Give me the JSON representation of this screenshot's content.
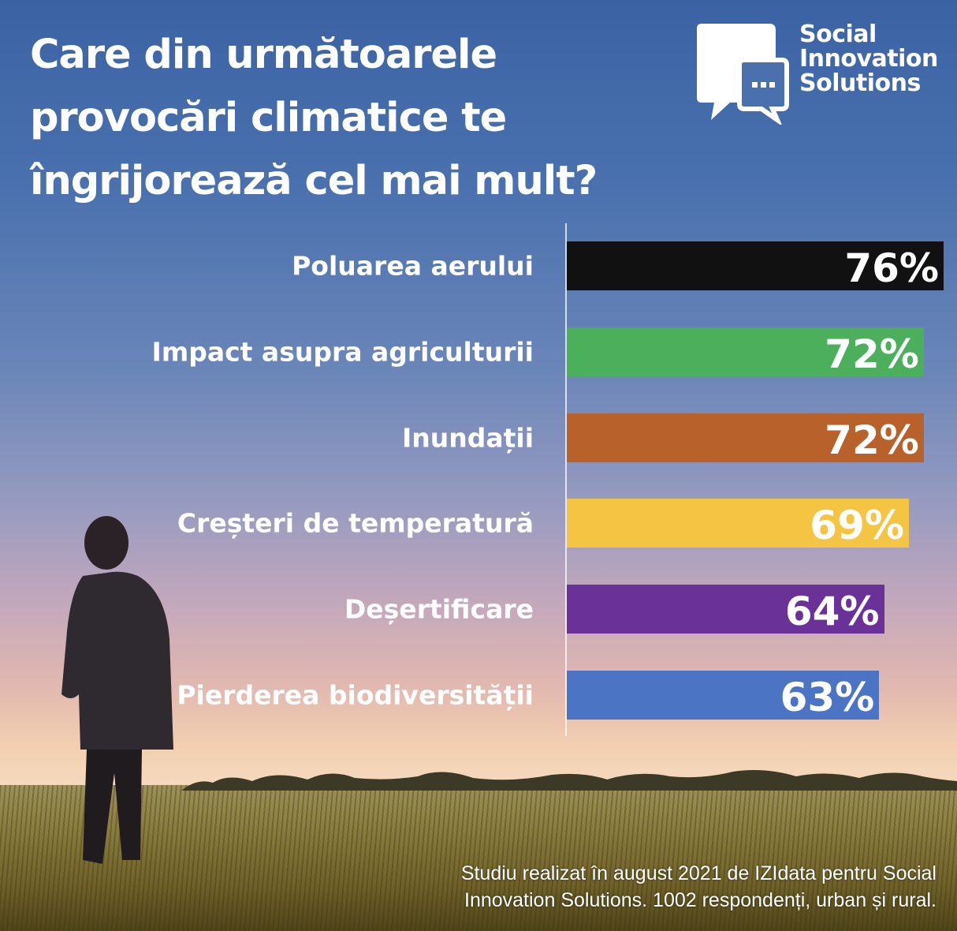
{
  "chart_data": {
    "type": "bar",
    "orientation": "horizontal",
    "title": "Care din următoarele provocări climatice te îngrijorează cel mai mult?",
    "title_lines": [
      "Care din următoarele",
      "provocări climatice te",
      "îngrijorează cel mai mult?"
    ],
    "categories": [
      "Poluarea aerului",
      "Impact asupra agriculturii",
      "Inundații",
      "Creșteri de temperatură",
      "Deșertificare",
      "Pierderea biodiversității"
    ],
    "values": [
      76,
      72,
      72,
      69,
      64,
      63
    ],
    "value_labels": [
      "76%",
      "72%",
      "72%",
      "69%",
      "64%",
      "63%"
    ],
    "colors": [
      "#111111",
      "#4caf5b",
      "#b9612b",
      "#f5c443",
      "#6a3199",
      "#4b74c5"
    ],
    "xlim": [
      0,
      76
    ],
    "unit": "%",
    "grid": false
  },
  "logo": {
    "lines": [
      "Social",
      "Innovation",
      "Solutions"
    ]
  },
  "footnote": {
    "lines": [
      "Studiu realizat în august 2021 de IZIdata pentru Social",
      "Innovation Solutions. 1002 respondenți, urban și rural."
    ]
  }
}
